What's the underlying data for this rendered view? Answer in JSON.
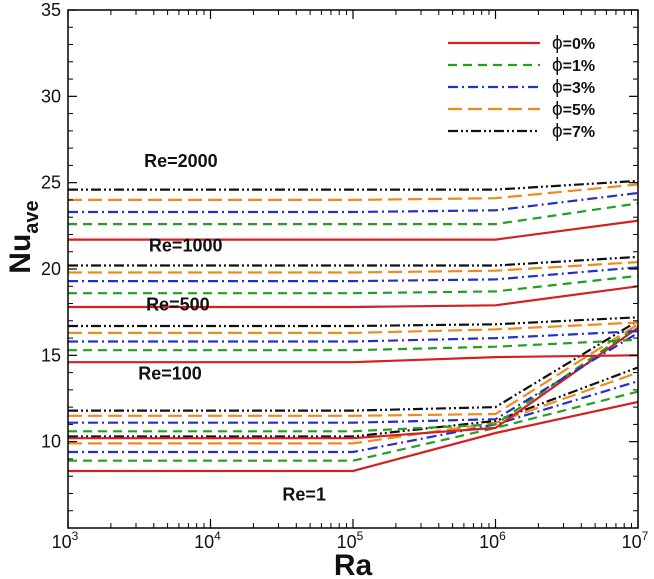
{
  "chart_data": {
    "type": "line",
    "xlabel": "Ra",
    "ylabel": "Nu",
    "ylabel_sub": "ave",
    "x_scale": "log",
    "xlim": [
      1000,
      10000000
    ],
    "ylim": [
      5,
      35
    ],
    "x_ticks": [
      {
        "base": "10",
        "exp": "3",
        "value": 1000
      },
      {
        "base": "10",
        "exp": "4",
        "value": 10000
      },
      {
        "base": "10",
        "exp": "5",
        "value": 100000
      },
      {
        "base": "10",
        "exp": "6",
        "value": 1000000
      },
      {
        "base": "10",
        "exp": "7",
        "value": 10000000
      }
    ],
    "y_ticks": [
      10,
      15,
      20,
      25,
      30,
      35
    ],
    "grid": false,
    "legend_position": "top-right",
    "legend": [
      {
        "symbol": "ϕ",
        "text": "=0%",
        "color": "#d42020",
        "dash": "solid"
      },
      {
        "symbol": "ϕ",
        "text": "=1%",
        "color": "#22a022",
        "dash": "dash"
      },
      {
        "symbol": "ϕ",
        "text": "=3%",
        "color": "#2230cc",
        "dash": "dashdot"
      },
      {
        "symbol": "ϕ",
        "text": "=5%",
        "color": "#f08a1c",
        "dash": "longdash"
      },
      {
        "symbol": "ϕ",
        "text": "=7%",
        "color": "#111111",
        "dash": "dashdotdot"
      }
    ],
    "x": [
      1000,
      100000,
      1000000,
      10000000
    ],
    "groups": [
      {
        "label": "Re=1",
        "series": [
          {
            "name": "ϕ=0%",
            "values": [
              8.3,
              8.3,
              10.5,
              12.3
            ]
          },
          {
            "name": "ϕ=1%",
            "values": [
              8.9,
              8.9,
              10.8,
              12.9
            ]
          },
          {
            "name": "ϕ=3%",
            "values": [
              9.4,
              9.4,
              11.0,
              13.5
            ]
          },
          {
            "name": "ϕ=5%",
            "values": [
              9.9,
              9.9,
              11.1,
              14.0
            ]
          },
          {
            "name": "ϕ=7%",
            "values": [
              10.3,
              10.3,
              11.2,
              14.3
            ]
          }
        ]
      },
      {
        "label": "Re=100",
        "series": [
          {
            "name": "ϕ=0%",
            "values": [
              10.2,
              10.2,
              10.8,
              16.6
            ]
          },
          {
            "name": "ϕ=1%",
            "values": [
              10.6,
              10.6,
              11.0,
              16.7
            ]
          },
          {
            "name": "ϕ=3%",
            "values": [
              11.1,
              11.1,
              11.3,
              16.3
            ]
          },
          {
            "name": "ϕ=5%",
            "values": [
              11.5,
              11.5,
              11.6,
              16.8
            ]
          },
          {
            "name": "ϕ=7%",
            "values": [
              11.8,
              11.8,
              12.0,
              17.0
            ]
          }
        ]
      },
      {
        "label": "Re=500",
        "series": [
          {
            "name": "ϕ=0%",
            "values": [
              14.6,
              14.6,
              14.9,
              15.0
            ]
          },
          {
            "name": "ϕ=1%",
            "values": [
              15.3,
              15.3,
              15.5,
              15.9
            ]
          },
          {
            "name": "ϕ=3%",
            "values": [
              15.8,
              15.8,
              16.0,
              16.4
            ]
          },
          {
            "name": "ϕ=5%",
            "values": [
              16.3,
              16.3,
              16.5,
              16.9
            ]
          },
          {
            "name": "ϕ=7%",
            "values": [
              16.7,
              16.7,
              16.8,
              17.2
            ]
          }
        ]
      },
      {
        "label": "Re=1000",
        "series": [
          {
            "name": "ϕ=0%",
            "values": [
              17.8,
              17.8,
              17.9,
              19.0
            ]
          },
          {
            "name": "ϕ=1%",
            "values": [
              18.6,
              18.6,
              18.7,
              19.6
            ]
          },
          {
            "name": "ϕ=3%",
            "values": [
              19.3,
              19.3,
              19.4,
              20.1
            ]
          },
          {
            "name": "ϕ=5%",
            "values": [
              19.8,
              19.8,
              19.9,
              20.4
            ]
          },
          {
            "name": "ϕ=7%",
            "values": [
              20.2,
              20.2,
              20.2,
              20.7
            ]
          }
        ]
      },
      {
        "label": "Re=2000",
        "series": [
          {
            "name": "ϕ=0%",
            "values": [
              21.7,
              21.7,
              21.7,
              22.8
            ]
          },
          {
            "name": "ϕ=1%",
            "values": [
              22.6,
              22.6,
              22.6,
              23.8
            ]
          },
          {
            "name": "ϕ=3%",
            "values": [
              23.3,
              23.3,
              23.4,
              24.4
            ]
          },
          {
            "name": "ϕ=5%",
            "values": [
              24.0,
              24.0,
              24.1,
              24.9
            ]
          },
          {
            "name": "ϕ=7%",
            "values": [
              24.6,
              24.6,
              24.6,
              25.1
            ]
          }
        ]
      }
    ]
  }
}
